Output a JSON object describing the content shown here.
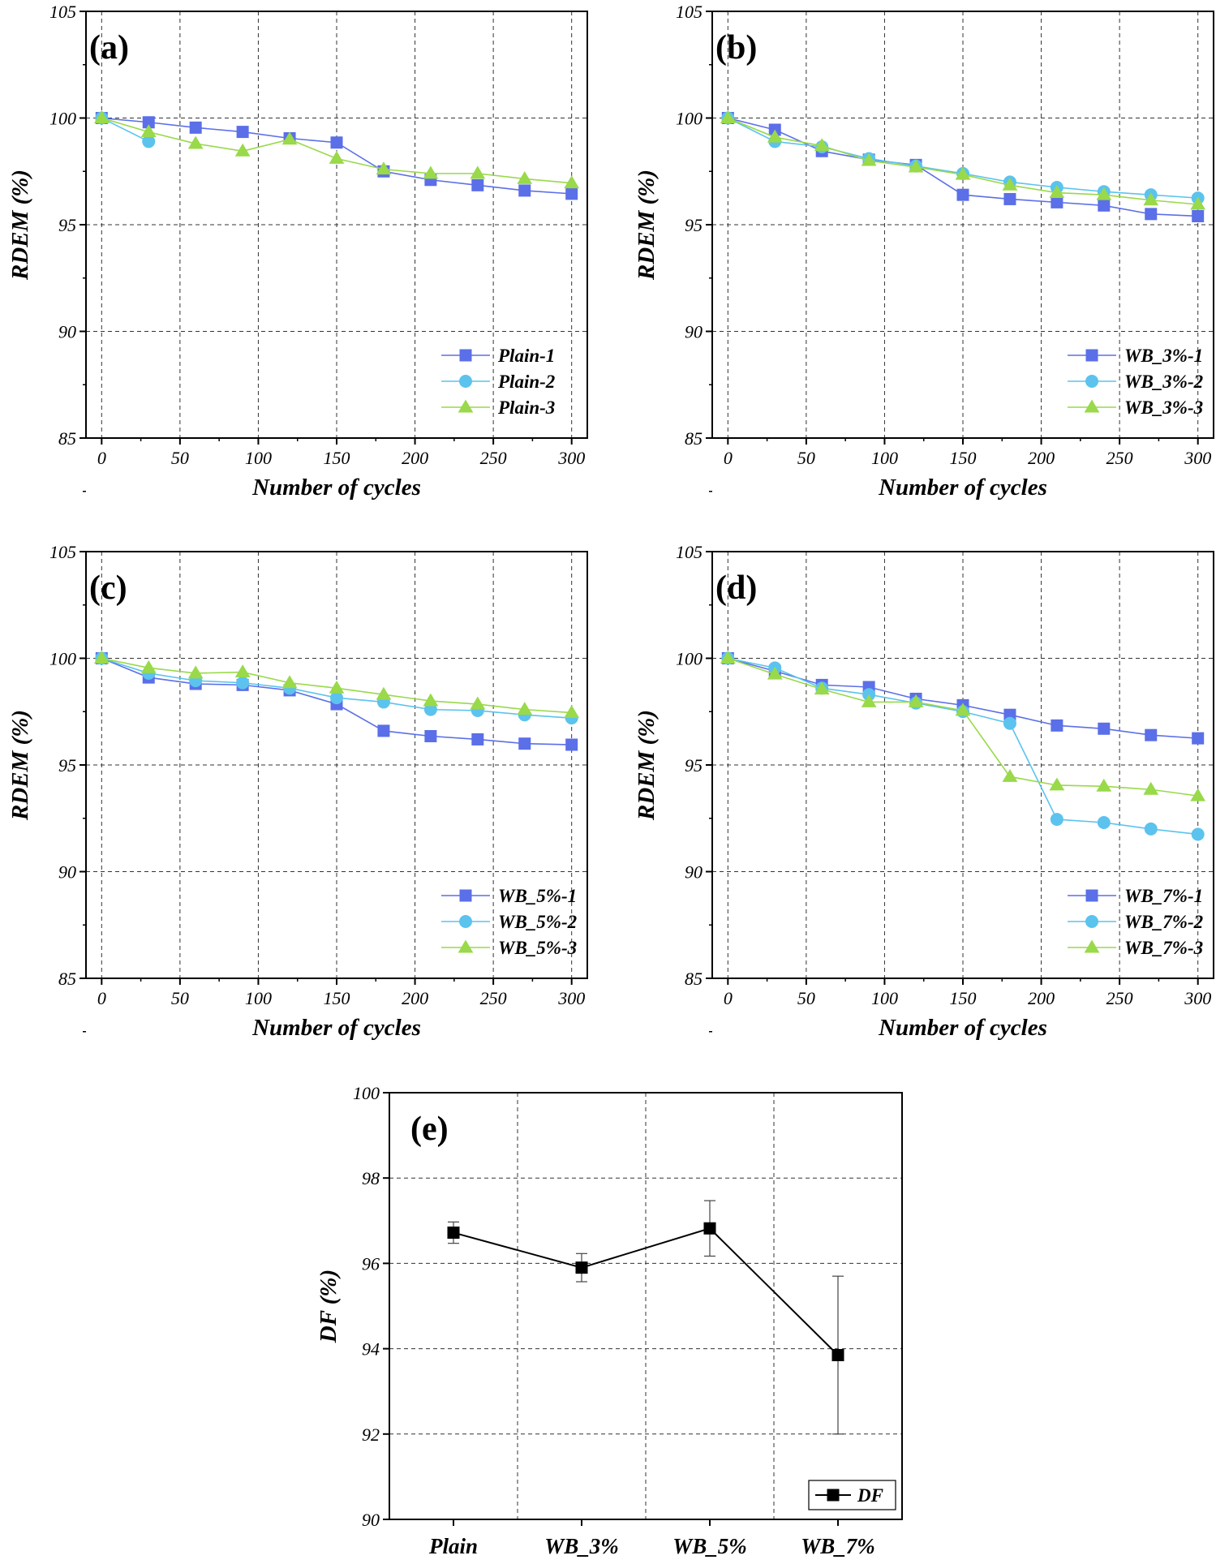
{
  "chart_data": [
    {
      "type": "line",
      "panel": "(a)",
      "xlabel": "Number of cycles",
      "ylabel": "RDEM (%)",
      "xlim": [
        -10,
        310
      ],
      "ylim": [
        85,
        105
      ],
      "xticks": [
        0,
        50,
        100,
        150,
        200,
        250,
        300
      ],
      "yticks": [
        85,
        90,
        95,
        100,
        105
      ],
      "x": [
        0,
        30,
        60,
        90,
        120,
        150,
        180,
        210,
        240,
        270,
        300
      ],
      "legend_position": "bottom-right",
      "series": [
        {
          "name": "Plain-1",
          "marker": "square",
          "color": "#5b6fe8",
          "values": [
            100,
            99.8,
            99.55,
            99.35,
            99.05,
            98.85,
            97.5,
            97.1,
            96.85,
            96.6,
            96.45
          ]
        },
        {
          "name": "Plain-2",
          "marker": "circle",
          "color": "#5bc3ee",
          "values": [
            100,
            98.9,
            null,
            null,
            null,
            null,
            null,
            null,
            null,
            null,
            null
          ]
        },
        {
          "name": "Plain-3",
          "marker": "triangle",
          "color": "#99d94a",
          "values": [
            100,
            99.35,
            98.8,
            98.45,
            99.0,
            98.1,
            97.6,
            97.4,
            97.4,
            97.15,
            96.95
          ]
        }
      ]
    },
    {
      "type": "line",
      "panel": "(b)",
      "xlabel": "Number of cycles",
      "ylabel": "RDEM (%)",
      "xlim": [
        -10,
        310
      ],
      "ylim": [
        85,
        105
      ],
      "xticks": [
        0,
        50,
        100,
        150,
        200,
        250,
        300
      ],
      "yticks": [
        85,
        90,
        95,
        100,
        105
      ],
      "x": [
        0,
        30,
        60,
        90,
        120,
        150,
        180,
        210,
        240,
        270,
        300
      ],
      "legend_position": "bottom-right",
      "series": [
        {
          "name": "WB_3%-1",
          "marker": "square",
          "color": "#5b6fe8",
          "values": [
            100,
            99.45,
            98.45,
            98.05,
            97.8,
            96.4,
            96.2,
            96.05,
            95.9,
            95.5,
            95.4
          ]
        },
        {
          "name": "WB_3%-2",
          "marker": "circle",
          "color": "#5bc3ee",
          "values": [
            100,
            98.9,
            98.65,
            98.1,
            97.75,
            97.4,
            97.0,
            96.75,
            96.55,
            96.4,
            96.25
          ]
        },
        {
          "name": "WB_3%-3",
          "marker": "triangle",
          "color": "#99d94a",
          "values": [
            100,
            99.1,
            98.7,
            98.0,
            97.7,
            97.35,
            96.85,
            96.5,
            96.4,
            96.15,
            95.95
          ]
        }
      ]
    },
    {
      "type": "line",
      "panel": "(c)",
      "xlabel": "Number of cycles",
      "ylabel": "RDEM (%)",
      "xlim": [
        -10,
        310
      ],
      "ylim": [
        85,
        105
      ],
      "xticks": [
        0,
        50,
        100,
        150,
        200,
        250,
        300
      ],
      "yticks": [
        85,
        90,
        95,
        100,
        105
      ],
      "x": [
        0,
        30,
        60,
        90,
        120,
        150,
        180,
        210,
        240,
        270,
        300
      ],
      "legend_position": "bottom-right",
      "series": [
        {
          "name": "WB_5%-1",
          "marker": "square",
          "color": "#5b6fe8",
          "values": [
            100,
            99.1,
            98.8,
            98.75,
            98.5,
            97.85,
            96.6,
            96.35,
            96.2,
            96.0,
            95.95
          ]
        },
        {
          "name": "WB_5%-2",
          "marker": "circle",
          "color": "#5bc3ee",
          "values": [
            100,
            99.3,
            98.95,
            98.85,
            98.6,
            98.15,
            97.95,
            97.6,
            97.55,
            97.35,
            97.2
          ]
        },
        {
          "name": "WB_5%-3",
          "marker": "triangle",
          "color": "#99d94a",
          "values": [
            100,
            99.55,
            99.3,
            99.35,
            98.85,
            98.6,
            98.3,
            98.0,
            97.85,
            97.6,
            97.45
          ]
        }
      ]
    },
    {
      "type": "line",
      "panel": "(d)",
      "xlabel": "Number of cycles",
      "ylabel": "RDEM (%)",
      "xlim": [
        -10,
        310
      ],
      "ylim": [
        85,
        105
      ],
      "xticks": [
        0,
        50,
        100,
        150,
        200,
        250,
        300
      ],
      "yticks": [
        85,
        90,
        95,
        100,
        105
      ],
      "x": [
        0,
        30,
        60,
        90,
        120,
        150,
        180,
        210,
        240,
        270,
        300
      ],
      "legend_position": "bottom-right",
      "series": [
        {
          "name": "WB_7%-1",
          "marker": "square",
          "color": "#5b6fe8",
          "values": [
            100,
            99.4,
            98.75,
            98.65,
            98.1,
            97.8,
            97.35,
            96.85,
            96.7,
            96.4,
            96.25
          ]
        },
        {
          "name": "WB_7%-2",
          "marker": "circle",
          "color": "#5bc3ee",
          "values": [
            100,
            99.55,
            98.6,
            98.3,
            97.9,
            97.5,
            96.95,
            92.45,
            92.3,
            92.0,
            91.75
          ]
        },
        {
          "name": "WB_7%-3",
          "marker": "triangle",
          "color": "#99d94a",
          "values": [
            100,
            99.25,
            98.55,
            97.95,
            97.95,
            97.55,
            94.45,
            94.05,
            94.0,
            93.85,
            93.55
          ]
        }
      ]
    },
    {
      "type": "line",
      "panel": "(e)",
      "xlabel": "",
      "ylabel": "DF (%)",
      "ylim": [
        90,
        100
      ],
      "yticks": [
        90,
        92,
        94,
        96,
        98,
        100
      ],
      "categories": [
        "Plain",
        "WB_3%",
        "WB_5%",
        "WB_7%"
      ],
      "legend_position": "bottom-right",
      "series": [
        {
          "name": "DF",
          "marker": "square",
          "color": "#000000",
          "values": [
            96.72,
            95.9,
            96.82,
            93.85
          ],
          "error": [
            0.25,
            0.33,
            0.65,
            1.85
          ]
        }
      ]
    }
  ]
}
